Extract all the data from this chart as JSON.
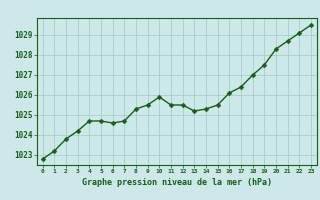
{
  "x": [
    0,
    1,
    2,
    3,
    4,
    5,
    6,
    7,
    8,
    9,
    10,
    11,
    12,
    13,
    14,
    15,
    16,
    17,
    18,
    19,
    20,
    21,
    22,
    23
  ],
  "y": [
    1022.8,
    1023.2,
    1023.8,
    1024.2,
    1024.7,
    1024.7,
    1024.6,
    1024.7,
    1025.3,
    1025.5,
    1025.9,
    1025.5,
    1025.5,
    1025.2,
    1025.3,
    1025.5,
    1026.1,
    1026.4,
    1027.0,
    1027.5,
    1028.3,
    1028.7,
    1029.1,
    1029.5
  ],
  "line_color": "#1a5c1a",
  "marker": "D",
  "marker_size": 2.5,
  "bg_color": "#cce8e8",
  "grid_color": "#a8cccc",
  "xlabel": "Graphe pression niveau de la mer (hPa)",
  "xlabel_color": "#1a5c1a",
  "tick_color": "#1a5c1a",
  "ylim": [
    1022.5,
    1029.85
  ],
  "yticks": [
    1023,
    1024,
    1025,
    1026,
    1027,
    1028,
    1029
  ],
  "xlim": [
    -0.5,
    23.5
  ],
  "xticks": [
    0,
    1,
    2,
    3,
    4,
    5,
    6,
    7,
    8,
    9,
    10,
    11,
    12,
    13,
    14,
    15,
    16,
    17,
    18,
    19,
    20,
    21,
    22,
    23
  ],
  "line_width": 1.0,
  "spine_color": "#1a5c1a"
}
